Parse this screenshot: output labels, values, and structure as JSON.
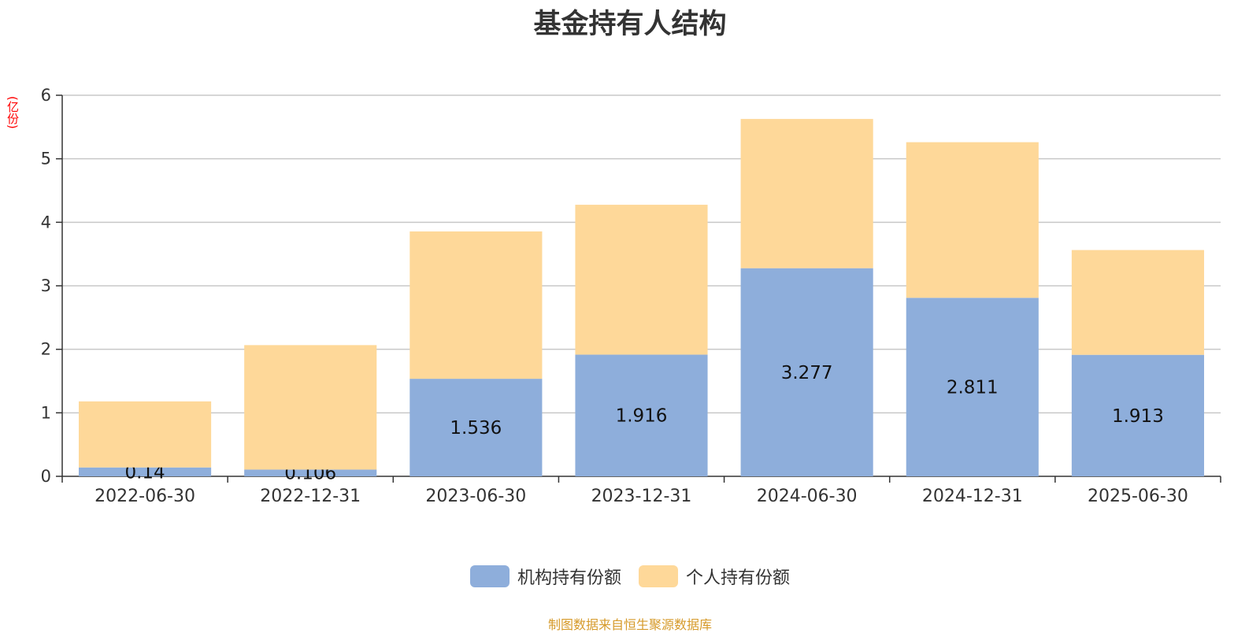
{
  "chart_data": {
    "type": "bar",
    "stacked": true,
    "title": "基金持有人结构",
    "unit_label": "(亿份)",
    "categories": [
      "2022-06-30",
      "2022-12-31",
      "2023-06-30",
      "2023-12-31",
      "2024-06-30",
      "2024-12-31",
      "2025-06-30"
    ],
    "series": [
      {
        "name": "机构持有份额",
        "color": "#8eaedb",
        "values": [
          0.14,
          0.106,
          1.536,
          1.916,
          3.277,
          2.811,
          1.913
        ],
        "value_labels": [
          "0.14",
          "0.106",
          "1.536",
          "1.916",
          "3.277",
          "2.811",
          "1.913"
        ]
      },
      {
        "name": "个人持有份额",
        "color": "#fed899",
        "values": [
          1.04,
          1.96,
          2.32,
          2.36,
          2.35,
          2.45,
          1.65
        ]
      }
    ],
    "ylim": [
      0,
      6
    ],
    "yticks": [
      "0",
      "1",
      "2",
      "3",
      "4",
      "5",
      "6"
    ],
    "grid": true,
    "legend_position": "bottom"
  },
  "footer": {
    "source": "制图数据来自恒生聚源数据库"
  }
}
